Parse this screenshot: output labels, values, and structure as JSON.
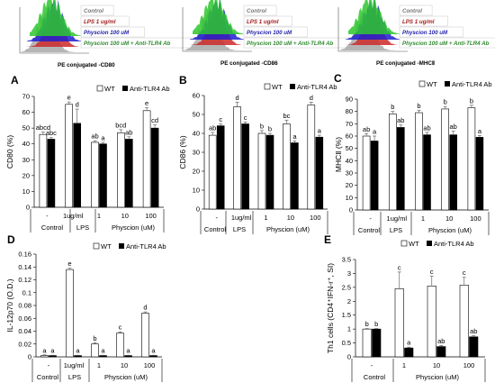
{
  "histograms": {
    "legend": [
      "Control",
      "LPS 1 ug/ml",
      "Physcion 100 uM",
      "Physcion 100 uM + Anti-TLR4 Ab"
    ],
    "colors": [
      "#a8a8a8",
      "#cc2a2a",
      "#1f1fd0",
      "#2ec72e"
    ],
    "label_colors": [
      "#777777",
      "#a31c1c",
      "#2222aa",
      "#2e8a2e"
    ],
    "captions": [
      "PE conjugated -CD80",
      "PE conjugated -CD86",
      "PE conjugated -MHCⅡ"
    ]
  },
  "chart_data": [
    {
      "type": "bar",
      "panel": "A",
      "ylabel": "CD80 (%)",
      "ylim": [
        0,
        70
      ],
      "yticks": [
        "0",
        "10",
        "20",
        "30",
        "40",
        "50",
        "60",
        "70"
      ],
      "legend": [
        "WT",
        "Anti-TLR4 Ab"
      ],
      "categories": [
        "-",
        "1ug/ml",
        "1",
        "10",
        "100"
      ],
      "groups": [
        "Control",
        "LPS",
        "Physcion (uM)"
      ],
      "series": [
        {
          "name": "WT",
          "values": [
            46,
            65,
            41,
            47,
            61
          ],
          "errors": [
            1.5,
            1.5,
            1,
            2,
            2
          ],
          "labels": [
            "abcd",
            "e",
            "ab",
            "bcd",
            "e"
          ]
        },
        {
          "name": "Anti-TLR4 Ab",
          "values": [
            43,
            53,
            40,
            43,
            50
          ],
          "errors": [
            1,
            9,
            1,
            1.5,
            2
          ],
          "labels": [
            "abc",
            "d",
            "a",
            "ab",
            "cd"
          ]
        }
      ]
    },
    {
      "type": "bar",
      "panel": "B",
      "ylabel": "CD86 (%)",
      "ylim": [
        0,
        60
      ],
      "yticks": [
        "0",
        "10",
        "20",
        "30",
        "40",
        "50",
        "60"
      ],
      "legend": [
        "WT",
        "Anti-TLR4 Ab"
      ],
      "categories": [
        "-",
        "1ug/ml",
        "1",
        "10",
        "100"
      ],
      "groups": [
        "Control",
        "LPS",
        "Physcion (uM)"
      ],
      "series": [
        {
          "name": "WT",
          "values": [
            39,
            54,
            40,
            45,
            55
          ],
          "errors": [
            1.5,
            2.5,
            1.5,
            2,
            1.5
          ],
          "labels": [
            "ab",
            "d",
            "b",
            "bc",
            "d"
          ]
        },
        {
          "name": "Anti-TLR4 Ab",
          "values": [
            44,
            45,
            39,
            35,
            38
          ],
          "errors": [
            1,
            1,
            1,
            1,
            1
          ],
          "labels": [
            "c",
            "c",
            "b",
            "a",
            "a"
          ]
        }
      ]
    },
    {
      "type": "bar",
      "panel": "C",
      "ylabel": "MHCⅡ (%)",
      "ylim": [
        0,
        90
      ],
      "yticks": [
        "0",
        "10",
        "20",
        "30",
        "40",
        "50",
        "60",
        "70",
        "80",
        "90"
      ],
      "legend": [
        "WT",
        "Anti-TLR4 Ab"
      ],
      "categories": [
        "-",
        "1ug/ml",
        "1",
        "10",
        "100"
      ],
      "groups": [
        "Control",
        "LPS",
        "Physcion (uM)"
      ],
      "series": [
        {
          "name": "WT",
          "values": [
            60,
            78,
            79,
            82,
            83
          ],
          "errors": [
            2,
            2,
            2,
            2,
            2
          ],
          "labels": [
            "ab",
            "b",
            "b",
            "b",
            "b"
          ]
        },
        {
          "name": "Anti-TLR4 Ab",
          "values": [
            56,
            67,
            61,
            61,
            59
          ],
          "errors": [
            4,
            2,
            2,
            3,
            1.5
          ],
          "labels": [
            "a",
            "ab",
            "ab",
            "ab",
            "a"
          ]
        }
      ]
    },
    {
      "type": "bar",
      "panel": "D",
      "ylabel": "IL-12p70 (O.D.)",
      "ylim": [
        0,
        0.16
      ],
      "yticks": [
        "0",
        "0.02",
        "0.04",
        "0.06",
        "0.08",
        "0.1",
        "0.12",
        "0.14",
        "0.16"
      ],
      "legend": [
        "WT",
        "Anti-TLR4 Ab"
      ],
      "categories": [
        "-",
        "1ug/ml",
        "1",
        "10",
        "100"
      ],
      "groups": [
        "Control",
        "LPS",
        "Physcion (uM)"
      ],
      "series": [
        {
          "name": "WT",
          "values": [
            0.002,
            0.136,
            0.02,
            0.037,
            0.068
          ],
          "errors": [
            0.001,
            0.002,
            0.002,
            0.002,
            0.002
          ],
          "labels": [
            "a",
            "e",
            "b",
            "c",
            "d"
          ]
        },
        {
          "name": "Anti-TLR4 Ab",
          "values": [
            0.002,
            0.002,
            0.002,
            0.002,
            0.002
          ],
          "errors": [
            0.0005,
            0.0005,
            0.0005,
            0.0005,
            0.0005
          ],
          "labels": [
            "a",
            "a",
            "a",
            "a",
            "a"
          ]
        }
      ]
    },
    {
      "type": "bar",
      "panel": "E",
      "ylabel": "Th1 cells (CD4⁺IFN-r⁺, SI)",
      "ylim": [
        0,
        3.5
      ],
      "yticks": [
        "0",
        "0.5",
        "1",
        "1.5",
        "2",
        "2.5",
        "3",
        "3.5"
      ],
      "legend": [
        "WT",
        "Anti-TLR4 Ab"
      ],
      "categories": [
        "-",
        "1",
        "10",
        "100"
      ],
      "groups": [
        "Control",
        "Physcion (uM)"
      ],
      "series": [
        {
          "name": "WT",
          "values": [
            1.0,
            2.45,
            2.55,
            2.58
          ],
          "errors": [
            0.02,
            0.6,
            0.35,
            0.28
          ],
          "labels": [
            "b",
            "c",
            "c",
            "c"
          ]
        },
        {
          "name": "Anti-TLR4 Ab",
          "values": [
            1.0,
            0.32,
            0.37,
            0.72
          ],
          "errors": [
            0.02,
            0.03,
            0.04,
            0.04
          ],
          "labels": [
            "b",
            "a",
            "ab",
            "ab"
          ]
        }
      ]
    }
  ]
}
